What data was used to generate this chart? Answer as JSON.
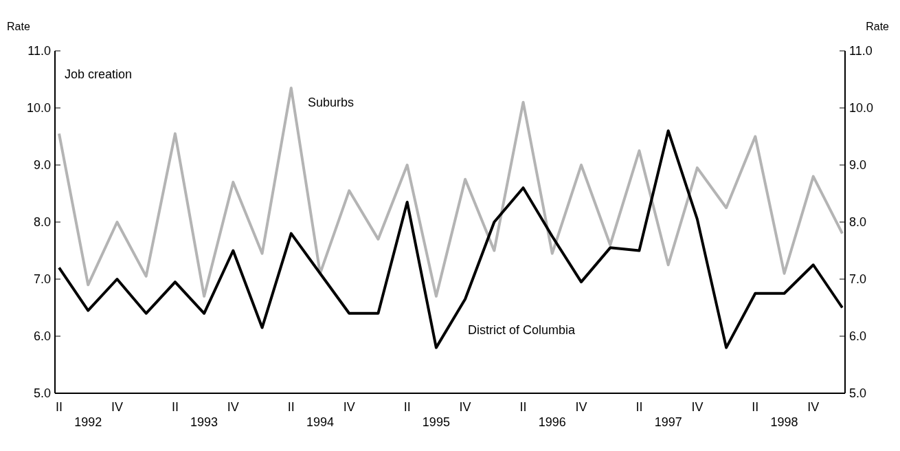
{
  "chart_data": {
    "type": "line",
    "ylabel": "Rate",
    "y2label": "Rate",
    "annotations": [
      "Job creation"
    ],
    "categories": [
      "II",
      "1992",
      "IV",
      null,
      "II",
      "1993",
      "IV",
      null,
      "II",
      "1994",
      "IV",
      null,
      "II",
      "1995",
      "IV",
      null,
      "II",
      "1996",
      "IV",
      null,
      "II",
      "1997",
      "IV",
      null,
      "II",
      "1998",
      "IV",
      null
    ],
    "series": [
      {
        "name": "Suburbs",
        "color": "#b4b4b4",
        "values": [
          9.55,
          6.9,
          8.0,
          7.05,
          9.55,
          6.7,
          8.7,
          7.45,
          10.35,
          7.1,
          8.55,
          7.7,
          9.0,
          6.7,
          8.75,
          7.5,
          10.1,
          7.45,
          9.0,
          7.6,
          9.25,
          7.25,
          8.95,
          8.25,
          9.5,
          7.1,
          8.8,
          7.8
        ]
      },
      {
        "name": "District of Columbia",
        "color": "#000000",
        "values": [
          7.2,
          6.45,
          7.0,
          6.4,
          6.95,
          6.4,
          7.5,
          6.15,
          7.8,
          7.1,
          6.4,
          6.4,
          8.35,
          5.8,
          6.65,
          8.0,
          8.6,
          7.75,
          6.95,
          7.55,
          7.5,
          9.6,
          8.05,
          5.8,
          6.75,
          6.75,
          7.25,
          6.5
        ]
      }
    ],
    "ylim": [
      5,
      11
    ],
    "yticks": [
      {
        "value": 5,
        "label": "5.0"
      },
      {
        "value": 6,
        "label": "6.0"
      },
      {
        "value": 7,
        "label": "7.0"
      },
      {
        "value": 8,
        "label": "8.0"
      },
      {
        "value": 9,
        "label": "9.0"
      },
      {
        "value": 10,
        "label": "10.0"
      },
      {
        "value": 11,
        "label": "11.0"
      }
    ],
    "y2lim": [
      5,
      11
    ],
    "y2ticks": [
      {
        "value": 5,
        "label": "5.0"
      },
      {
        "value": 6,
        "label": "6.0"
      },
      {
        "value": 7,
        "label": "7.0"
      },
      {
        "value": 8,
        "label": "8.0"
      },
      {
        "value": 9,
        "label": "9.0"
      },
      {
        "value": 10,
        "label": "10.0"
      },
      {
        "value": 11,
        "label": "11.0"
      }
    ],
    "grid": false,
    "legend": false,
    "marker": "none",
    "line_style": "solid"
  }
}
